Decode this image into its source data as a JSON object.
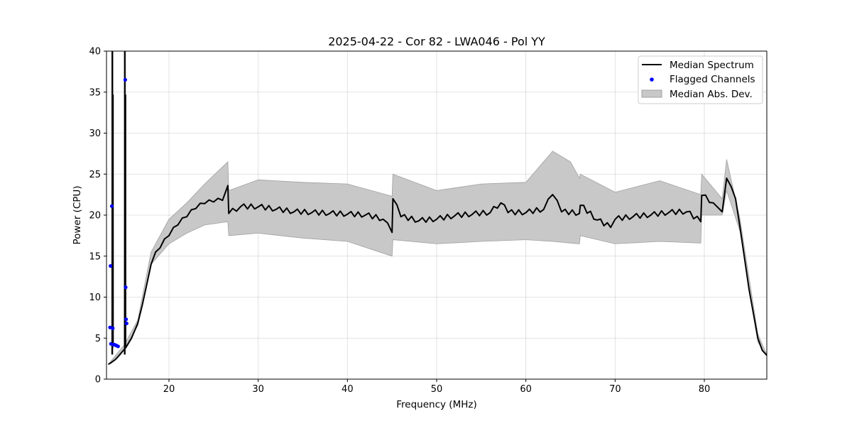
{
  "chart_data": {
    "type": "line",
    "title": "2025-04-22 - Cor 82 - LWA046 - Pol YY",
    "xlabel": "Frequency (MHz)",
    "ylabel": "Power (CPU)",
    "xlim": [
      13,
      87
    ],
    "ylim": [
      0,
      40
    ],
    "xticks": [
      20,
      30,
      40,
      50,
      60,
      70,
      80
    ],
    "yticks": [
      0,
      5,
      10,
      15,
      20,
      25,
      30,
      35,
      40
    ],
    "grid": true,
    "legend_position": "top-right",
    "legend": [
      "Median Spectrum",
      "Flagged Channels",
      "Median Abs. Dev."
    ],
    "colors": {
      "median": "#000000",
      "flagged": "#0000ff",
      "band_fill": "#c8c8c8",
      "band_edge": "#a0a0a0"
    },
    "series": [
      {
        "name": "Median Spectrum",
        "x": [
          13.2,
          13.5,
          14.0,
          14.5,
          15.2,
          15.8,
          16.5,
          17.0,
          17.5,
          18.0,
          18.5,
          19.0,
          20.0,
          21.0,
          22.0,
          23.0,
          24.0,
          25.0,
          26.0,
          26.6,
          26.7,
          28.0,
          30.0,
          32.0,
          34.0,
          36.0,
          38.0,
          40.0,
          42.0,
          44.0,
          45.0,
          45.1,
          46.0,
          48.0,
          50.0,
          52.0,
          54.0,
          56.0,
          57.2,
          58.0,
          60.0,
          62.0,
          63.0,
          64.0,
          66.0,
          66.1,
          68.0,
          69.5,
          70.0,
          72.0,
          74.0,
          76.0,
          78.0,
          79.6,
          79.7,
          81.0,
          82.0,
          82.5,
          83.0,
          83.5,
          84.0,
          85.0,
          86.0,
          86.5,
          87.0
        ],
        "y": [
          1.8,
          2.0,
          2.4,
          3.0,
          3.9,
          5.0,
          6.8,
          9.0,
          11.5,
          14.0,
          15.5,
          16.0,
          17.5,
          18.8,
          19.8,
          20.8,
          21.4,
          21.6,
          21.8,
          23.6,
          20.2,
          21.0,
          21.0,
          20.7,
          20.4,
          20.3,
          20.2,
          20.1,
          20.0,
          19.5,
          17.9,
          22.0,
          19.8,
          19.3,
          19.5,
          19.9,
          20.1,
          20.3,
          21.5,
          20.3,
          20.3,
          20.7,
          22.5,
          20.4,
          20.2,
          21.2,
          19.4,
          18.5,
          19.5,
          19.8,
          20.0,
          20.3,
          20.4,
          19.2,
          22.4,
          21.5,
          20.4,
          24.5,
          23.5,
          22.0,
          18.5,
          11.0,
          5.0,
          3.5,
          2.9
        ]
      },
      {
        "name": "Median Abs. Dev.",
        "x": [
          13.2,
          15.0,
          16.5,
          18.0,
          20.0,
          22.0,
          24.0,
          26.6,
          26.7,
          30.0,
          35.0,
          40.0,
          45.0,
          45.1,
          50.0,
          55.0,
          60.0,
          63.0,
          65.0,
          66.0,
          66.1,
          70.0,
          75.0,
          79.6,
          79.7,
          82.0,
          82.5,
          84.0,
          86.0,
          87.0
        ],
        "lower": [
          1.8,
          3.7,
          6.5,
          14.0,
          16.5,
          17.8,
          18.8,
          19.2,
          17.5,
          17.8,
          17.2,
          16.8,
          15.0,
          17.0,
          16.5,
          16.8,
          17.0,
          16.8,
          16.6,
          16.5,
          17.5,
          16.5,
          16.8,
          16.6,
          20.0,
          20.0,
          23.0,
          18.0,
          4.5,
          2.8
        ],
        "upper": [
          1.8,
          4.2,
          7.2,
          15.5,
          19.5,
          21.5,
          23.8,
          26.5,
          23.0,
          24.3,
          24.0,
          23.8,
          22.3,
          25.0,
          23.0,
          23.8,
          24.0,
          27.8,
          26.5,
          24.5,
          25.0,
          22.8,
          24.2,
          22.5,
          25.0,
          22.0,
          26.8,
          19.5,
          5.5,
          3.0
        ]
      },
      {
        "name": "Flagged Channels",
        "x": [
          13.4,
          13.45,
          13.5,
          13.6,
          13.7,
          13.8,
          13.9,
          14.1,
          14.3,
          15.1,
          15.15,
          15.2,
          15.25
        ],
        "y": [
          6.3,
          13.8,
          4.3,
          21.1,
          6.2,
          4.2,
          4.2,
          4.1,
          4.0,
          36.5,
          11.2,
          7.3,
          6.8
        ]
      }
    ]
  }
}
